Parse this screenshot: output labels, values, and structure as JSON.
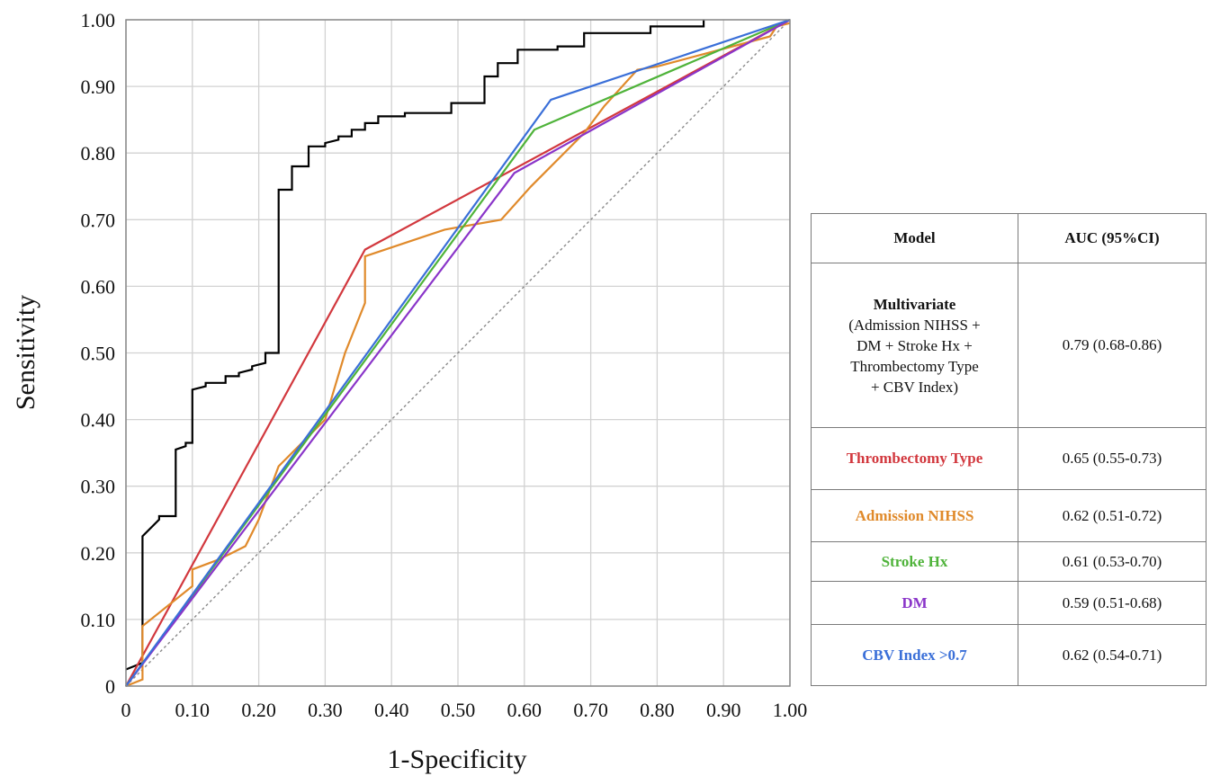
{
  "chart_data": {
    "type": "line",
    "xlabel": "1-Specificity",
    "ylabel": "Sensitivity",
    "xlim": [
      0,
      1
    ],
    "ylim": [
      0,
      1
    ],
    "grid": true,
    "x_ticks": [
      "0",
      "0.10",
      "0.20",
      "0.30",
      "0.40",
      "0.50",
      "0.60",
      "0.70",
      "0.80",
      "0.90",
      "1.00"
    ],
    "y_ticks": [
      "0",
      "0.10",
      "0.20",
      "0.30",
      "0.40",
      "0.50",
      "0.60",
      "0.70",
      "0.80",
      "0.90",
      "1.00"
    ],
    "reference_line": {
      "x": [
        0,
        1
      ],
      "y": [
        0,
        1
      ],
      "style": "dotted",
      "color": "#8a8a8a"
    },
    "series": [
      {
        "color": "#000000",
        "x": [
          0,
          0.025,
          0.025,
          0.05,
          0.05,
          0.075,
          0.075,
          0.09,
          0.09,
          0.1,
          0.1,
          0.12,
          0.12,
          0.15,
          0.15,
          0.17,
          0.17,
          0.19,
          0.19,
          0.21,
          0.21,
          0.23,
          0.23,
          0.25,
          0.25,
          0.275,
          0.275,
          0.3,
          0.3,
          0.32,
          0.32,
          0.34,
          0.34,
          0.36,
          0.36,
          0.38,
          0.38,
          0.42,
          0.42,
          0.49,
          0.49,
          0.54,
          0.54,
          0.56,
          0.56,
          0.59,
          0.59,
          0.65,
          0.65,
          0.69,
          0.69,
          0.79,
          0.79,
          0.87,
          0.87
        ],
        "y": [
          0.025,
          0.035,
          0.225,
          0.25,
          0.255,
          0.255,
          0.355,
          0.36,
          0.365,
          0.365,
          0.445,
          0.45,
          0.455,
          0.455,
          0.465,
          0.465,
          0.47,
          0.475,
          0.48,
          0.485,
          0.5,
          0.5,
          0.745,
          0.745,
          0.78,
          0.78,
          0.81,
          0.81,
          0.815,
          0.82,
          0.825,
          0.825,
          0.835,
          0.835,
          0.845,
          0.845,
          0.855,
          0.855,
          0.86,
          0.86,
          0.875,
          0.875,
          0.915,
          0.915,
          0.935,
          0.935,
          0.955,
          0.955,
          0.96,
          0.96,
          0.98,
          0.98,
          0.99,
          0.99,
          1.0
        ]
      },
      {
        "color": "#d2383e",
        "x": [
          0,
          0.36,
          1.0
        ],
        "y": [
          0,
          0.655,
          1.0
        ]
      },
      {
        "color": "#e08a2b",
        "x": [
          0,
          0.025,
          0.025,
          0.1,
          0.1,
          0.14,
          0.18,
          0.2,
          0.23,
          0.24,
          0.3,
          0.33,
          0.36,
          0.36,
          0.45,
          0.48,
          0.565,
          0.61,
          0.69,
          0.72,
          0.77,
          0.8,
          0.97,
          0.98,
          1.0
        ],
        "y": [
          0,
          0.01,
          0.09,
          0.15,
          0.175,
          0.19,
          0.21,
          0.25,
          0.33,
          0.34,
          0.4,
          0.5,
          0.575,
          0.645,
          0.675,
          0.685,
          0.7,
          0.75,
          0.83,
          0.87,
          0.925,
          0.93,
          0.975,
          0.99,
          0.995
        ]
      },
      {
        "color": "#4fb33a",
        "x": [
          0,
          0.615,
          1.0
        ],
        "y": [
          0,
          0.835,
          1.0
        ]
      },
      {
        "color": "#8a35c9",
        "x": [
          0,
          0.585,
          1.0
        ],
        "y": [
          0,
          0.77,
          1.0
        ]
      },
      {
        "color": "#3a6fd8",
        "x": [
          0,
          0.64,
          1.0
        ],
        "y": [
          0,
          0.88,
          1.0
        ]
      }
    ]
  },
  "table": {
    "headers": {
      "model": "Model",
      "auc": "AUC (95%CI)"
    },
    "rows": [
      {
        "model": "Multivariate",
        "detail": [
          "(Admission NIHSS +",
          "DM + Stroke Hx +",
          "Thrombectomy Type",
          "+ CBV Index)"
        ],
        "auc": "0.79 (0.68-0.86)",
        "color": "#111111"
      },
      {
        "model": "Thrombectomy Type",
        "auc": "0.65 (0.55-0.73)",
        "color": "#d2383e"
      },
      {
        "model": "Admission NIHSS",
        "auc": "0.62 (0.51-0.72)",
        "color": "#e08a2b"
      },
      {
        "model": "Stroke Hx",
        "auc": "0.61 (0.53-0.70)",
        "color": "#4fb33a"
      },
      {
        "model": "DM",
        "auc": "0.59 (0.51-0.68)",
        "color": "#8a35c9"
      },
      {
        "model": "CBV Index >0.7",
        "auc": "0.62 (0.54-0.71)",
        "color": "#3a6fd8"
      }
    ]
  }
}
